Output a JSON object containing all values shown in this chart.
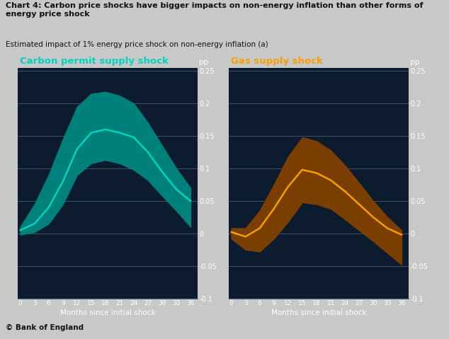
{
  "bg_color": "#0d1b2e",
  "outer_bg": "#c8c8c8",
  "title": "Chart 4: Carbon price shocks have bigger impacts on non-energy inflation than other forms of\nenergy price shock",
  "subtitle": "Estimated impact of 1% energy price shock on non-energy inflation (a)",
  "footer": "© Bank of England",
  "left_label": "Carbon permit supply shock",
  "right_label": "Gas supply shock",
  "ylabel": "pp",
  "xlabel": "Months since initial shock",
  "x_ticks": [
    0,
    3,
    6,
    9,
    12,
    15,
    18,
    21,
    24,
    27,
    30,
    33,
    36
  ],
  "ylim": [
    -0.1,
    0.255
  ],
  "yticks": [
    0.25,
    0.2,
    0.15,
    0.1,
    0.05,
    0.0,
    -0.05,
    -0.1
  ],
  "ytick_labels": [
    "0.25",
    "0.2",
    "0.15",
    "0.1",
    "0.05",
    "0",
    "-0.05",
    "-0.1"
  ],
  "carbon_line": [
    0.005,
    0.015,
    0.04,
    0.08,
    0.13,
    0.155,
    0.16,
    0.155,
    0.148,
    0.125,
    0.095,
    0.068,
    0.05
  ],
  "carbon_upper": [
    0.01,
    0.045,
    0.09,
    0.145,
    0.195,
    0.215,
    0.218,
    0.212,
    0.2,
    0.17,
    0.135,
    0.1,
    0.07
  ],
  "carbon_lower": [
    -0.002,
    0.002,
    0.015,
    0.045,
    0.09,
    0.108,
    0.113,
    0.108,
    0.098,
    0.082,
    0.058,
    0.035,
    0.01
  ],
  "gas_line": [
    0.002,
    -0.005,
    0.008,
    0.038,
    0.072,
    0.098,
    0.093,
    0.082,
    0.065,
    0.045,
    0.025,
    0.008,
    -0.002
  ],
  "gas_upper": [
    0.008,
    0.008,
    0.035,
    0.075,
    0.118,
    0.148,
    0.142,
    0.128,
    0.105,
    0.078,
    0.05,
    0.025,
    0.005
  ],
  "gas_lower": [
    -0.008,
    -0.025,
    -0.028,
    -0.008,
    0.018,
    0.048,
    0.045,
    0.038,
    0.022,
    0.005,
    -0.012,
    -0.03,
    -0.048
  ],
  "carbon_color": "#00d4c0",
  "carbon_fill_color": "#00807a",
  "gas_color": "#f5a000",
  "gas_fill_color": "#7a3f00",
  "grid_color": "#5a7090",
  "text_color": "#ffffff",
  "title_fontsize": 8.0,
  "subtitle_fontsize": 7.5,
  "label_fontsize": 9.5,
  "tick_fontsize": 7.0
}
